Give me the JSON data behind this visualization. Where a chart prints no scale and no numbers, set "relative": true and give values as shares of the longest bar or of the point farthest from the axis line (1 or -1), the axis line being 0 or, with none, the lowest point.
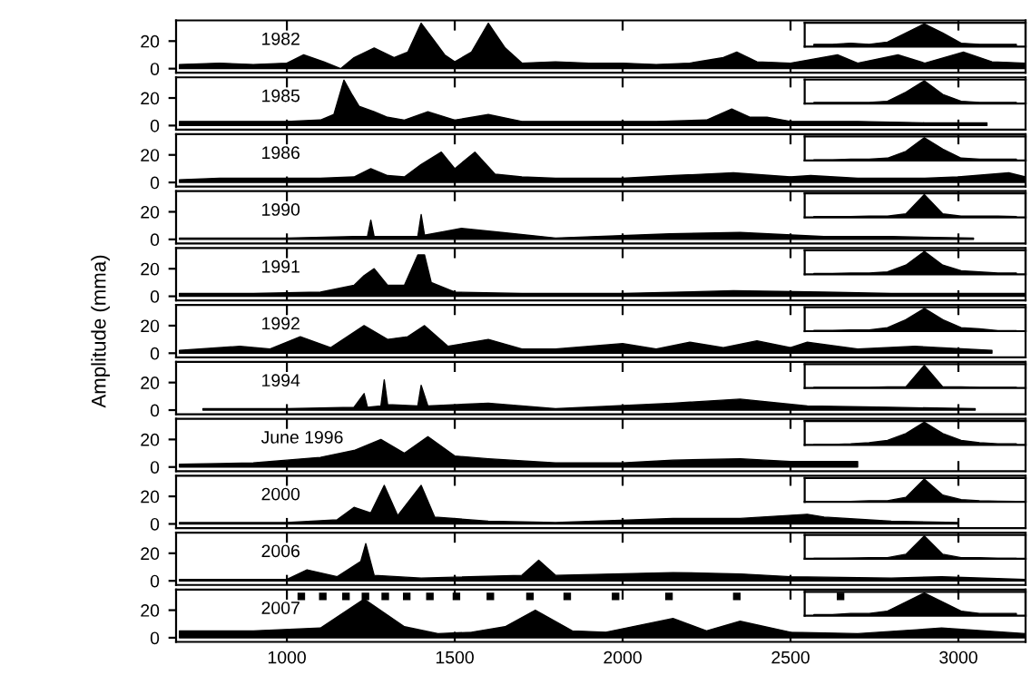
{
  "chart_data": [
    {
      "type": "area",
      "title": "1982",
      "xlim": [
        670,
        3200
      ],
      "xticks": [
        1000,
        1500,
        2000,
        2500,
        3000
      ],
      "ylim": [
        -3,
        35
      ],
      "yticks": [
        0,
        20
      ],
      "tick_labels": "y",
      "series": [
        {
          "color": "#000000",
          "x": [
            680,
            800,
            900,
            1000,
            1050,
            1110,
            1160,
            1200,
            1260,
            1320,
            1360,
            1400,
            1440,
            1470,
            1500,
            1550,
            1600,
            1650,
            1700,
            1800,
            1900,
            2000,
            2100,
            2200,
            2300,
            2340,
            2400,
            2500,
            2640,
            2700,
            2820,
            2900,
            3015,
            3100,
            3200
          ],
          "values": [
            3,
            4,
            3,
            4,
            10,
            5,
            0,
            8,
            15,
            8,
            12,
            33,
            20,
            10,
            5,
            12,
            33,
            15,
            4,
            5,
            4,
            4,
            3,
            4,
            8,
            12,
            5,
            4,
            10,
            4,
            10,
            4,
            12,
            5,
            4
          ]
        }
      ]
    },
    {
      "type": "area",
      "relative": true,
      "tick_labels": false,
      "categories": [
        null,
        null,
        null,
        null,
        null,
        null,
        null,
        null,
        null,
        null,
        null,
        null
      ],
      "series": [
        {
          "color": "#000000",
          "values": [
            0.1,
            0.1,
            0.15,
            0.1,
            0.2,
            0.6,
            1,
            0.6,
            0.15,
            0.1,
            0.1,
            0.1
          ]
        }
      ]
    },
    {
      "type": "area",
      "title": "1985",
      "xlim": [
        670,
        3200
      ],
      "xticks": [
        1000,
        1500,
        2000,
        2500,
        3000
      ],
      "ylim": [
        -3,
        35
      ],
      "yticks": [
        0,
        20
      ],
      "tick_labels": "y",
      "series": [
        {
          "color": "#000000",
          "x": [
            680,
            800,
            1000,
            1100,
            1140,
            1170,
            1195,
            1215,
            1260,
            1300,
            1350,
            1420,
            1500,
            1600,
            1700,
            1900,
            2100,
            2250,
            2325,
            2380,
            2430,
            2500,
            2700,
            2900,
            3085
          ],
          "values": [
            3,
            3,
            3,
            4,
            8,
            33,
            22,
            14,
            10,
            6,
            4,
            10,
            4,
            8,
            3,
            3,
            3,
            4,
            12,
            6,
            6,
            3,
            3,
            2,
            2
          ]
        }
      ]
    },
    {
      "type": "area",
      "relative": true,
      "tick_labels": false,
      "categories": [
        null,
        null,
        null,
        null,
        null,
        null,
        null,
        null,
        null,
        null,
        null,
        null
      ],
      "series": [
        {
          "color": "#000000",
          "values": [
            0.05,
            0.05,
            0.05,
            0.05,
            0.1,
            0.5,
            1,
            0.4,
            0.1,
            0.05,
            0.05,
            0.05
          ]
        }
      ]
    },
    {
      "type": "area",
      "title": "1986",
      "xlim": [
        670,
        3200
      ],
      "xticks": [
        1000,
        1500,
        2000,
        2500,
        3000
      ],
      "ylim": [
        -3,
        35
      ],
      "yticks": [
        0,
        20
      ],
      "tick_labels": "y",
      "series": [
        {
          "color": "#000000",
          "x": [
            680,
            800,
            1000,
            1100,
            1200,
            1250,
            1300,
            1350,
            1400,
            1460,
            1500,
            1560,
            1620,
            1700,
            1800,
            2000,
            2150,
            2330,
            2500,
            2560,
            2700,
            2900,
            3000,
            3150,
            3200
          ],
          "values": [
            2,
            3,
            3,
            3,
            4,
            10,
            5,
            4,
            13,
            22,
            10,
            22,
            6,
            4,
            3,
            3,
            5,
            7,
            4,
            5,
            3,
            3,
            4,
            7,
            4
          ]
        }
      ]
    },
    {
      "type": "area",
      "relative": true,
      "tick_labels": false,
      "categories": [
        null,
        null,
        null,
        null,
        null,
        null,
        null,
        null,
        null,
        null,
        null,
        null
      ],
      "series": [
        {
          "color": "#000000",
          "values": [
            0.02,
            0.02,
            0.05,
            0.05,
            0.1,
            0.4,
            1,
            0.5,
            0.1,
            0.05,
            0.05,
            0.05
          ]
        }
      ]
    },
    {
      "type": "area",
      "title": "1990",
      "xlim": [
        670,
        3200
      ],
      "xticks": [
        1000,
        1500,
        2000,
        2500,
        3000
      ],
      "ylim": [
        -3,
        35
      ],
      "yticks": [
        0,
        20
      ],
      "tick_labels": "y",
      "series": [
        {
          "color": "#000000",
          "x": [
            680,
            1000,
            1200,
            1240,
            1250,
            1260,
            1390,
            1400,
            1410,
            1520,
            1640,
            1800,
            2140,
            2350,
            2600,
            2800,
            3045
          ],
          "values": [
            1,
            1,
            2,
            2,
            14,
            2,
            2,
            18,
            3,
            8,
            5,
            1,
            4,
            5,
            2,
            2,
            1
          ]
        }
      ]
    },
    {
      "type": "area",
      "relative": true,
      "tick_labels": false,
      "categories": [
        null,
        null,
        null,
        null,
        null,
        null,
        null,
        null,
        null,
        null,
        null,
        null
      ],
      "series": [
        {
          "color": "#000000",
          "values": [
            0.03,
            0.03,
            0.03,
            0.05,
            0.05,
            0.15,
            1,
            0.15,
            0.05,
            0.05,
            0.05,
            0.03
          ]
        }
      ]
    },
    {
      "type": "area",
      "title": "1991",
      "xlim": [
        670,
        3200
      ],
      "xticks": [
        1000,
        1500,
        2000,
        2500,
        3000
      ],
      "ylim": [
        -3,
        35
      ],
      "yticks": [
        0,
        20
      ],
      "tick_labels": "y",
      "series": [
        {
          "color": "#000000",
          "x": [
            680,
            900,
            1100,
            1200,
            1230,
            1260,
            1300,
            1350,
            1390,
            1410,
            1430,
            1500,
            1700,
            2000,
            2330,
            2600,
            2800,
            3200
          ],
          "values": [
            2,
            2,
            3,
            8,
            15,
            20,
            8,
            8,
            30,
            30,
            10,
            3,
            2,
            2,
            4,
            3,
            2,
            2
          ]
        }
      ]
    },
    {
      "type": "area",
      "relative": true,
      "tick_labels": false,
      "categories": [
        null,
        null,
        null,
        null,
        null,
        null,
        null,
        null,
        null,
        null,
        null,
        null
      ],
      "series": [
        {
          "color": "#000000",
          "values": [
            0.03,
            0.03,
            0.05,
            0.05,
            0.1,
            0.4,
            1,
            0.4,
            0.15,
            0.1,
            0.05,
            0.05
          ]
        }
      ]
    },
    {
      "type": "area",
      "title": "1992",
      "ylabel": "Amplitude (mma)",
      "xlim": [
        670,
        3200
      ],
      "xticks": [
        1000,
        1500,
        2000,
        2500,
        3000
      ],
      "ylim": [
        -3,
        35
      ],
      "yticks": [
        0,
        20
      ],
      "tick_labels": "y",
      "series": [
        {
          "color": "#000000",
          "x": [
            680,
            860,
            950,
            1040,
            1130,
            1230,
            1300,
            1360,
            1410,
            1480,
            1600,
            1700,
            1800,
            2000,
            2100,
            2200,
            2300,
            2400,
            2500,
            2550,
            2700,
            2870,
            3100
          ],
          "values": [
            2,
            5,
            3,
            12,
            4,
            20,
            10,
            12,
            20,
            5,
            10,
            3,
            3,
            7,
            3,
            8,
            4,
            9,
            4,
            8,
            3,
            5,
            2
          ]
        }
      ]
    },
    {
      "type": "area",
      "relative": true,
      "tick_labels": false,
      "categories": [
        null,
        null,
        null,
        null,
        null,
        null,
        null,
        null,
        null,
        null,
        null,
        null
      ],
      "series": [
        {
          "color": "#000000",
          "values": [
            0.03,
            0.03,
            0.05,
            0.05,
            0.15,
            0.5,
            1,
            0.5,
            0.15,
            0.1,
            0.02,
            0.02
          ]
        }
      ]
    },
    {
      "type": "area",
      "title": "1994",
      "xlim": [
        670,
        3200
      ],
      "xticks": [
        1000,
        1500,
        2000,
        2500,
        3000
      ],
      "ylim": [
        -3,
        35
      ],
      "yticks": [
        0,
        20
      ],
      "tick_labels": "y",
      "series": [
        {
          "color": "#000000",
          "x": [
            750,
            1000,
            1200,
            1230,
            1240,
            1280,
            1290,
            1300,
            1390,
            1400,
            1420,
            1600,
            1800,
            2150,
            2350,
            2550,
            2800,
            3050
          ],
          "values": [
            1,
            1,
            2,
            12,
            2,
            3,
            22,
            4,
            3,
            18,
            3,
            5,
            1,
            5,
            8,
            3,
            2,
            1
          ]
        }
      ]
    },
    {
      "type": "area",
      "relative": true,
      "tick_labels": false,
      "categories": [
        null,
        null,
        null,
        null,
        null,
        null,
        null,
        null,
        null,
        null,
        null,
        null
      ],
      "series": [
        {
          "color": "#000000",
          "values": [
            0.03,
            0.03,
            0.03,
            0.03,
            0.05,
            0.05,
            1,
            0.05,
            0.05,
            0.03,
            0.03,
            0.03
          ]
        }
      ]
    },
    {
      "type": "area",
      "title": "June 1996",
      "xlim": [
        670,
        3200
      ],
      "xticks": [
        1000,
        1500,
        2000,
        2500,
        3000
      ],
      "ylim": [
        -3,
        35
      ],
      "yticks": [
        0,
        20
      ],
      "tick_labels": "y",
      "series": [
        {
          "color": "#000000",
          "x": [
            680,
            900,
            1000,
            1100,
            1200,
            1280,
            1350,
            1420,
            1500,
            1600,
            1800,
            2000,
            2150,
            2350,
            2500,
            2700
          ],
          "values": [
            2,
            3,
            5,
            7,
            12,
            20,
            10,
            22,
            8,
            6,
            3,
            3,
            5,
            6,
            4,
            4
          ]
        }
      ]
    },
    {
      "type": "area",
      "relative": true,
      "tick_labels": false,
      "categories": [
        null,
        null,
        null,
        null,
        null,
        null,
        null,
        null,
        null,
        null,
        null,
        null
      ],
      "series": [
        {
          "color": "#000000",
          "values": [
            0.02,
            0.02,
            0.05,
            0.1,
            0.2,
            0.5,
            1,
            0.5,
            0.2,
            0.1,
            0.05,
            0.05
          ]
        }
      ]
    },
    {
      "type": "area",
      "title": "2000",
      "xlim": [
        670,
        3200
      ],
      "xticks": [
        1000,
        1500,
        2000,
        2500,
        3000
      ],
      "ylim": [
        -3,
        35
      ],
      "yticks": [
        0,
        20
      ],
      "tick_labels": "y",
      "series": [
        {
          "color": "#000000",
          "x": [
            680,
            1000,
            1150,
            1200,
            1250,
            1290,
            1330,
            1400,
            1440,
            1600,
            1800,
            2150,
            2350,
            2550,
            2600,
            2800,
            3000
          ],
          "values": [
            1,
            1,
            3,
            12,
            8,
            28,
            6,
            28,
            5,
            2,
            1,
            4,
            4,
            7,
            5,
            2,
            1
          ]
        }
      ]
    },
    {
      "type": "area",
      "relative": true,
      "tick_labels": false,
      "categories": [
        null,
        null,
        null,
        null,
        null,
        null,
        null,
        null,
        null,
        null,
        null,
        null
      ],
      "series": [
        {
          "color": "#000000",
          "values": [
            0.02,
            0.02,
            0.02,
            0.05,
            0.05,
            0.2,
            1,
            0.3,
            0.1,
            0.05,
            0.03,
            0.02
          ]
        }
      ]
    },
    {
      "type": "area",
      "title": "2006",
      "xlim": [
        670,
        3200
      ],
      "xticks": [
        1000,
        1500,
        2000,
        2500,
        3000
      ],
      "ylim": [
        -3,
        35
      ],
      "yticks": [
        0,
        20
      ],
      "tick_labels": "y",
      "series": [
        {
          "color": "#000000",
          "x": [
            680,
            1000,
            1060,
            1150,
            1220,
            1235,
            1260,
            1400,
            1700,
            1750,
            1800,
            2150,
            2350,
            2500,
            2800,
            2950,
            3200
          ],
          "values": [
            1,
            1,
            8,
            3,
            14,
            27,
            4,
            2,
            4,
            15,
            4,
            6,
            5,
            3,
            2,
            3,
            1
          ]
        }
      ]
    },
    {
      "type": "area",
      "relative": true,
      "tick_labels": false,
      "categories": [
        null,
        null,
        null,
        null,
        null,
        null,
        null,
        null,
        null,
        null,
        null,
        null
      ],
      "series": [
        {
          "color": "#000000",
          "values": [
            0.02,
            0.02,
            0.03,
            0.05,
            0.05,
            0.2,
            1,
            0.2,
            0.05,
            0.05,
            0.02,
            0.02
          ]
        }
      ]
    },
    {
      "type": "area",
      "title": "2007",
      "xlim": [
        670,
        3200
      ],
      "xticks": [
        1000,
        1500,
        2000,
        2500,
        3000
      ],
      "ylim": [
        -3,
        35
      ],
      "yticks": [
        0,
        20
      ],
      "series": [
        {
          "color": "#000000",
          "x": [
            680,
            900,
            1100,
            1230,
            1350,
            1450,
            1550,
            1650,
            1740,
            1850,
            1950,
            2150,
            2250,
            2350,
            2500,
            2700,
            2950,
            3200
          ],
          "values": [
            5,
            5,
            7,
            28,
            8,
            3,
            4,
            8,
            20,
            5,
            4,
            14,
            5,
            12,
            4,
            3,
            7,
            3
          ]
        },
        {
          "type": "scatter",
          "marker": "square",
          "color": "#000000",
          "x": [
            1043,
            1107,
            1176,
            1234,
            1293,
            1357,
            1426,
            1505,
            1606,
            1724,
            1835,
            1979,
            2138,
            2340,
            2649
          ],
          "values": [
            30,
            30,
            30,
            30,
            30,
            30,
            30,
            30,
            30,
            30,
            30,
            30,
            30,
            30,
            30
          ]
        }
      ]
    },
    {
      "type": "area",
      "relative": true,
      "tick_labels": false,
      "categories": [
        null,
        null,
        null,
        null,
        null,
        null,
        null,
        null,
        null,
        null,
        null,
        null
      ],
      "series": [
        {
          "color": "#000000",
          "values": [
            0.05,
            0.05,
            0.1,
            0.1,
            0.2,
            0.6,
            1,
            0.6,
            0.2,
            0.1,
            0.1,
            0.1
          ]
        }
      ]
    }
  ]
}
